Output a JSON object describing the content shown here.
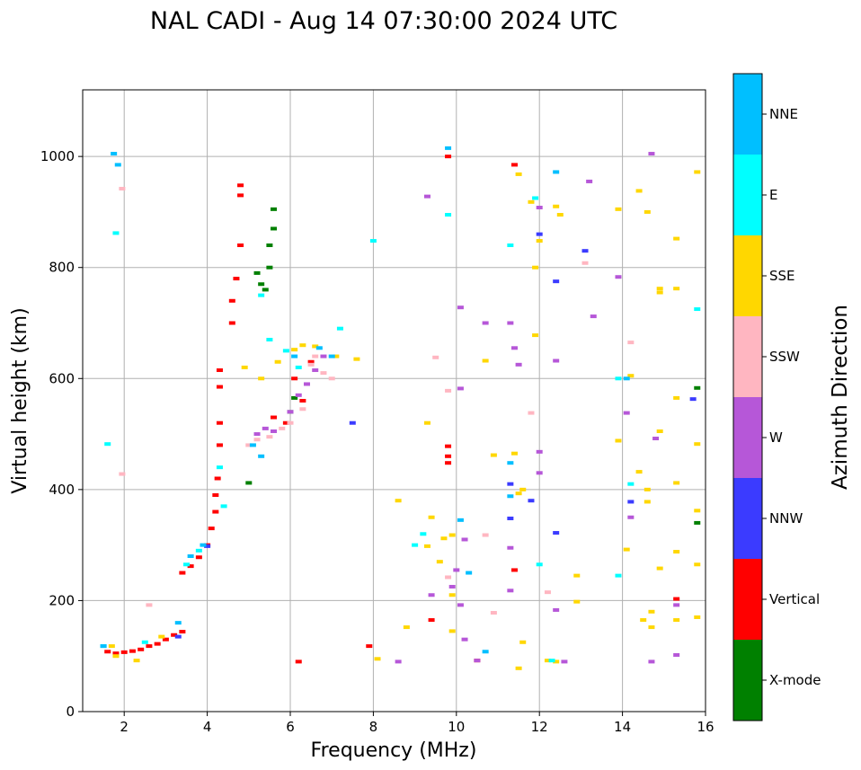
{
  "chart_data": {
    "type": "scatter",
    "title": "NAL CADI - Aug 14 07:30:00 2024 UTC",
    "xlabel": "Frequency (MHz)",
    "ylabel": "Virtual height (km)",
    "xlim": [
      1,
      16
    ],
    "ylim": [
      0,
      1120
    ],
    "xticks": [
      2,
      4,
      6,
      8,
      10,
      12,
      14,
      16
    ],
    "yticks": [
      0,
      200,
      400,
      600,
      800,
      1000
    ],
    "grid": true,
    "colorbar": {
      "title": "Azimuth Direction",
      "categories": [
        {
          "name": "X-mode",
          "color": "#008000"
        },
        {
          "name": "Vertical",
          "color": "#ff0000"
        },
        {
          "name": "NNW",
          "color": "#3b3bff"
        },
        {
          "name": "W",
          "color": "#b657d8"
        },
        {
          "name": "SSW",
          "color": "#ffb6c1"
        },
        {
          "name": "SSE",
          "color": "#ffd700"
        },
        {
          "name": "E",
          "color": "#00ffff"
        },
        {
          "name": "NNE",
          "color": "#00bfff"
        }
      ]
    },
    "series": [
      {
        "name": "Vertical",
        "points": [
          [
            1.6,
            108
          ],
          [
            1.8,
            105
          ],
          [
            2.0,
            107
          ],
          [
            2.2,
            109
          ],
          [
            2.4,
            112
          ],
          [
            2.6,
            118
          ],
          [
            2.8,
            122
          ],
          [
            3.0,
            130
          ],
          [
            3.2,
            138
          ],
          [
            3.4,
            144
          ],
          [
            3.4,
            250
          ],
          [
            3.6,
            262
          ],
          [
            3.8,
            278
          ],
          [
            4.0,
            300
          ],
          [
            4.1,
            330
          ],
          [
            4.2,
            360
          ],
          [
            4.2,
            390
          ],
          [
            4.25,
            420
          ],
          [
            4.3,
            480
          ],
          [
            4.3,
            520
          ],
          [
            4.3,
            585
          ],
          [
            4.3,
            615
          ],
          [
            4.6,
            700
          ],
          [
            4.6,
            740
          ],
          [
            4.7,
            780
          ],
          [
            4.8,
            840
          ],
          [
            4.8,
            930
          ],
          [
            4.8,
            948
          ],
          [
            5.6,
            530
          ],
          [
            5.9,
            520
          ],
          [
            6.1,
            600
          ],
          [
            6.3,
            560
          ],
          [
            6.5,
            630
          ],
          [
            9.8,
            478
          ],
          [
            9.8,
            460
          ],
          [
            9.8,
            448
          ],
          [
            9.8,
            1000
          ],
          [
            11.4,
            985
          ],
          [
            6.2,
            90
          ],
          [
            7.9,
            118
          ],
          [
            9.4,
            165
          ],
          [
            10.5,
            92
          ],
          [
            11.4,
            255
          ],
          [
            15.3,
            203
          ]
        ]
      },
      {
        "name": "X-mode",
        "points": [
          [
            5.2,
            790
          ],
          [
            5.3,
            770
          ],
          [
            5.4,
            760
          ],
          [
            5.5,
            800
          ],
          [
            5.5,
            840
          ],
          [
            5.6,
            870
          ],
          [
            5.6,
            905
          ],
          [
            5.0,
            412
          ],
          [
            6.0,
            540
          ],
          [
            6.1,
            565
          ],
          [
            15.8,
            583
          ],
          [
            15.8,
            340
          ]
        ]
      },
      {
        "name": "NNW",
        "points": [
          [
            3.3,
            135
          ],
          [
            4.0,
            298
          ],
          [
            11.3,
            410
          ],
          [
            11.3,
            348
          ],
          [
            11.8,
            380
          ],
          [
            12.0,
            860
          ],
          [
            12.4,
            775
          ],
          [
            14.2,
            378
          ],
          [
            15.7,
            563
          ],
          [
            7.5,
            520
          ],
          [
            13.1,
            830
          ],
          [
            12.4,
            322
          ]
        ]
      },
      {
        "name": "W",
        "points": [
          [
            5.2,
            500
          ],
          [
            5.4,
            510
          ],
          [
            5.6,
            505
          ],
          [
            6.0,
            540
          ],
          [
            6.2,
            570
          ],
          [
            6.4,
            590
          ],
          [
            6.6,
            615
          ],
          [
            6.8,
            640
          ],
          [
            9.3,
            928
          ],
          [
            10.1,
            728
          ],
          [
            10.7,
            700
          ],
          [
            10.1,
            582
          ],
          [
            11.4,
            655
          ],
          [
            11.3,
            700
          ],
          [
            11.5,
            625
          ],
          [
            12.0,
            430
          ],
          [
            12.0,
            468
          ],
          [
            12.0,
            908
          ],
          [
            12.4,
            632
          ],
          [
            12.4,
            183
          ],
          [
            12.6,
            90
          ],
          [
            13.3,
            712
          ],
          [
            13.9,
            783
          ],
          [
            14.1,
            538
          ],
          [
            14.2,
            350
          ],
          [
            14.7,
            1005
          ],
          [
            14.8,
            492
          ],
          [
            14.7,
            90
          ],
          [
            15.3,
            192
          ],
          [
            15.3,
            102
          ],
          [
            10.0,
            255
          ],
          [
            10.1,
            192
          ],
          [
            10.2,
            310
          ],
          [
            10.2,
            130
          ],
          [
            11.3,
            295
          ],
          [
            11.3,
            218
          ],
          [
            9.4,
            210
          ],
          [
            9.9,
            225
          ],
          [
            13.2,
            955
          ],
          [
            8.6,
            90
          ],
          [
            10.5,
            92
          ]
        ]
      },
      {
        "name": "SSW",
        "points": [
          [
            5.0,
            480
          ],
          [
            5.2,
            490
          ],
          [
            5.5,
            495
          ],
          [
            5.8,
            510
          ],
          [
            6.0,
            520
          ],
          [
            6.3,
            545
          ],
          [
            6.5,
            625
          ],
          [
            6.6,
            640
          ],
          [
            6.8,
            610
          ],
          [
            7.0,
            600
          ],
          [
            1.95,
            942
          ],
          [
            1.95,
            428
          ],
          [
            2.6,
            192
          ],
          [
            9.5,
            638
          ],
          [
            9.8,
            578
          ],
          [
            10.7,
            318
          ],
          [
            10.9,
            178
          ],
          [
            11.8,
            538
          ],
          [
            12.2,
            215
          ],
          [
            13.1,
            808
          ],
          [
            14.2,
            665
          ],
          [
            9.8,
            242
          ]
        ]
      },
      {
        "name": "SSE",
        "points": [
          [
            1.7,
            118
          ],
          [
            1.8,
            100
          ],
          [
            2.3,
            92
          ],
          [
            2.9,
            135
          ],
          [
            4.9,
            620
          ],
          [
            5.3,
            600
          ],
          [
            5.7,
            630
          ],
          [
            6.1,
            652
          ],
          [
            6.3,
            660
          ],
          [
            6.6,
            658
          ],
          [
            7.1,
            640
          ],
          [
            7.6,
            635
          ],
          [
            8.1,
            95
          ],
          [
            8.6,
            380
          ],
          [
            9.3,
            520
          ],
          [
            9.4,
            350
          ],
          [
            9.6,
            270
          ],
          [
            9.7,
            312
          ],
          [
            9.9,
            318
          ],
          [
            10.7,
            632
          ],
          [
            10.9,
            462
          ],
          [
            11.4,
            465
          ],
          [
            11.6,
            125
          ],
          [
            11.9,
            678
          ],
          [
            12.0,
            848
          ],
          [
            12.4,
            910
          ],
          [
            12.4,
            90
          ],
          [
            12.5,
            895
          ],
          [
            12.9,
            245
          ],
          [
            12.9,
            198
          ],
          [
            13.9,
            905
          ],
          [
            13.9,
            488
          ],
          [
            14.1,
            292
          ],
          [
            14.2,
            605
          ],
          [
            14.4,
            938
          ],
          [
            14.4,
            432
          ],
          [
            14.5,
            165
          ],
          [
            14.6,
            900
          ],
          [
            14.6,
            400
          ],
          [
            14.6,
            378
          ],
          [
            14.7,
            180
          ],
          [
            14.7,
            152
          ],
          [
            14.9,
            762
          ],
          [
            14.9,
            755
          ],
          [
            14.9,
            505
          ],
          [
            14.9,
            258
          ],
          [
            15.3,
            852
          ],
          [
            15.3,
            762
          ],
          [
            15.3,
            565
          ],
          [
            15.3,
            412
          ],
          [
            15.3,
            288
          ],
          [
            15.3,
            165
          ],
          [
            15.8,
            972
          ],
          [
            15.8,
            482
          ],
          [
            15.8,
            362
          ],
          [
            15.8,
            265
          ],
          [
            9.9,
            145
          ],
          [
            8.8,
            152
          ],
          [
            11.5,
            968
          ],
          [
            11.8,
            918
          ],
          [
            11.9,
            800
          ],
          [
            12.2,
            92
          ],
          [
            11.5,
            393
          ],
          [
            11.6,
            400
          ],
          [
            11.5,
            78
          ],
          [
            9.3,
            298
          ],
          [
            9.9,
            210
          ],
          [
            15.8,
            170
          ]
        ]
      },
      {
        "name": "E",
        "points": [
          [
            1.5,
            118
          ],
          [
            1.6,
            482
          ],
          [
            1.8,
            862
          ],
          [
            2.5,
            125
          ],
          [
            3.5,
            265
          ],
          [
            3.8,
            290
          ],
          [
            4.3,
            440
          ],
          [
            4.4,
            370
          ],
          [
            5.3,
            750
          ],
          [
            5.5,
            670
          ],
          [
            5.9,
            650
          ],
          [
            6.2,
            620
          ],
          [
            7.2,
            690
          ],
          [
            8.0,
            848
          ],
          [
            9.0,
            300
          ],
          [
            9.8,
            895
          ],
          [
            11.3,
            840
          ],
          [
            11.9,
            925
          ],
          [
            12.0,
            265
          ],
          [
            12.3,
            92
          ],
          [
            13.9,
            600
          ],
          [
            13.9,
            245
          ],
          [
            14.2,
            410
          ],
          [
            15.8,
            725
          ],
          [
            9.2,
            320
          ]
        ]
      },
      {
        "name": "NNE",
        "points": [
          [
            1.5,
            118
          ],
          [
            1.75,
            1005
          ],
          [
            1.85,
            985
          ],
          [
            3.3,
            160
          ],
          [
            3.6,
            280
          ],
          [
            3.9,
            300
          ],
          [
            5.1,
            480
          ],
          [
            5.3,
            460
          ],
          [
            6.1,
            640
          ],
          [
            6.7,
            655
          ],
          [
            7.0,
            640
          ],
          [
            9.8,
            1015
          ],
          [
            10.1,
            345
          ],
          [
            10.3,
            250
          ],
          [
            10.7,
            108
          ],
          [
            11.3,
            448
          ],
          [
            11.3,
            388
          ],
          [
            12.4,
            972
          ],
          [
            14.1,
            600
          ]
        ]
      }
    ]
  }
}
